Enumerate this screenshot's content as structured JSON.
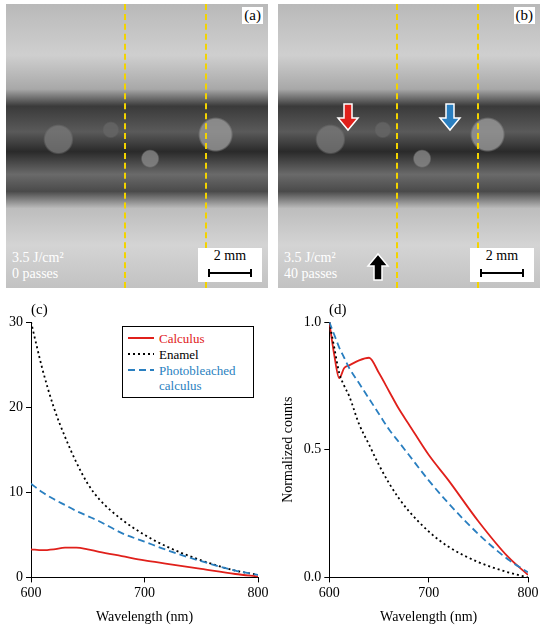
{
  "panels": [
    {
      "letter": "(a)",
      "fluence": "3.5 J/cm²",
      "passes": "0 passes",
      "scale_bar": "2 mm"
    },
    {
      "letter": "(b)",
      "fluence": "3.5 J/cm²",
      "passes": "40 passes",
      "scale_bar": "2 mm"
    }
  ],
  "chart_data": [
    {
      "type": "line",
      "letter": "(c)",
      "x_label": "Wavelength (nm)",
      "x": [
        600,
        610,
        620,
        630,
        640,
        650,
        660,
        680,
        700,
        720,
        750,
        780,
        800
      ],
      "series": [
        {
          "name": "Calculus",
          "color": "#e0201b",
          "line_style": "solid",
          "values": [
            3.3,
            3.2,
            3.3,
            3.5,
            3.5,
            3.3,
            3.0,
            2.5,
            2.0,
            1.6,
            1.0,
            0.4,
            0.1
          ]
        },
        {
          "name": "Enamel",
          "color": "#000000",
          "line_style": "dotted",
          "values": [
            30,
            24.5,
            20,
            16.5,
            13.5,
            11,
            9.2,
            6.8,
            5,
            3.6,
            2,
            0.8,
            0.3
          ]
        },
        {
          "name": "Photobleached calculus",
          "color": "#2a7fc0",
          "line_style": "dashed",
          "values": [
            11,
            10,
            9.2,
            8.5,
            7.8,
            7.2,
            6.6,
            5.2,
            4.2,
            3.2,
            1.9,
            0.8,
            0.3
          ]
        }
      ],
      "xlim": [
        600,
        800
      ],
      "xticks": [
        600,
        700,
        800
      ],
      "ylim": [
        0,
        30
      ],
      "yticks": [
        0,
        10,
        20,
        30
      ],
      "grid": false,
      "legend": "upper right"
    },
    {
      "type": "line",
      "letter": "(d)",
      "x_label": "Wavelength (nm)",
      "y_label": "Normalized counts",
      "x": [
        600,
        605,
        610,
        615,
        620,
        630,
        640,
        650,
        660,
        670,
        680,
        700,
        720,
        750,
        780,
        800
      ],
      "series": [
        {
          "name": "Calculus",
          "color": "#e0201b",
          "line_style": "solid",
          "values": [
            1.0,
            0.87,
            0.78,
            0.82,
            0.83,
            0.85,
            0.86,
            0.8,
            0.73,
            0.66,
            0.6,
            0.48,
            0.38,
            0.22,
            0.08,
            0.01
          ]
        },
        {
          "name": "Enamel",
          "color": "#000000",
          "line_style": "dotted",
          "values": [
            1.0,
            0.9,
            0.8,
            0.75,
            0.71,
            0.6,
            0.52,
            0.44,
            0.37,
            0.31,
            0.26,
            0.18,
            0.12,
            0.06,
            0.02,
            0.0
          ]
        },
        {
          "name": "Photobleached calculus",
          "color": "#2a7fc0",
          "line_style": "dashed",
          "values": [
            1.0,
            0.95,
            0.9,
            0.86,
            0.82,
            0.76,
            0.7,
            0.64,
            0.58,
            0.53,
            0.48,
            0.38,
            0.29,
            0.17,
            0.07,
            0.02
          ]
        }
      ],
      "xlim": [
        600,
        800
      ],
      "xticks": [
        600,
        700,
        800
      ],
      "ylim": [
        0,
        1
      ],
      "yticks": [
        {
          "value": 0,
          "label": "0.0"
        },
        {
          "value": 0.5,
          "label": "0.5"
        },
        {
          "value": 1,
          "label": "1.0"
        }
      ],
      "grid": false
    }
  ]
}
